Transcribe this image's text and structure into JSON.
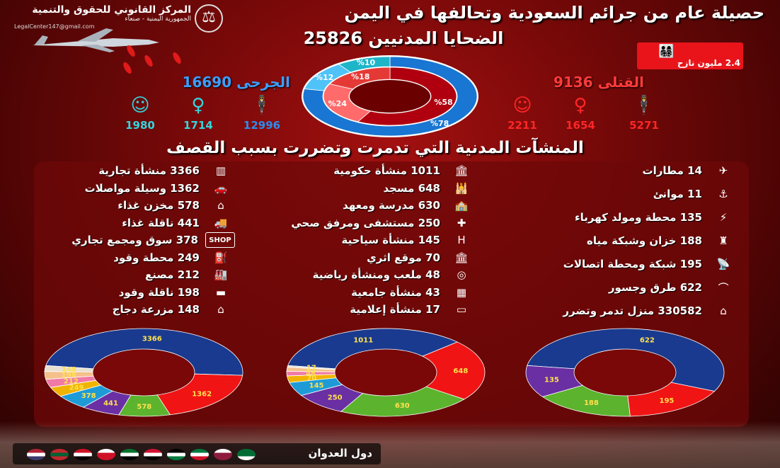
{
  "header": {
    "title": "حصيلة عام من جرائم السعودية وتحالفها في اليمن",
    "civilian_victims_label": "الضحايا المدنيين 25826"
  },
  "org": {
    "name": "المركز القانوني للحقوق والتنمية",
    "sub": "الجمهورية اليمنية - صنعاء",
    "email": "LegalCenter147@gmail.com"
  },
  "displaced": {
    "label": "2.4 مليون نازح",
    "color": "#e8141a"
  },
  "killed": {
    "label": "القتلى 9136",
    "men": "5271",
    "women": "1654",
    "children": "2211",
    "color": "#ff2626"
  },
  "injured": {
    "label": "الجرحى 16690",
    "men": "12996",
    "women": "1714",
    "children": "1980",
    "color": "#2b8df0"
  },
  "victims_donut": {
    "outer": [
      {
        "label": "%78",
        "value": 78,
        "color": "#1976d2"
      },
      {
        "label": "%12",
        "value": 12,
        "color": "#4fc3f7"
      },
      {
        "label": "%10",
        "value": 10,
        "color": "#1fb5c9"
      }
    ],
    "inner": [
      {
        "label": "%58",
        "value": 58,
        "color": "#b0000f"
      },
      {
        "label": "%24",
        "value": 24,
        "color": "#ff6b6b"
      },
      {
        "label": "%18",
        "value": 18,
        "color": "#e53935"
      }
    ]
  },
  "facilities_title": "المنشآت المدنية التي تدمرت وتضررت بسبب القصف",
  "columns": {
    "right": [
      {
        "text": "14 مطارات",
        "icon": "airport-icon",
        "glyph": "✈"
      },
      {
        "text": "11 موانئ",
        "icon": "anchor-icon",
        "glyph": "⚓"
      },
      {
        "text": "135 محطة ومولد كهرباء",
        "icon": "power-tower-icon",
        "glyph": "⚡"
      },
      {
        "text": "188 خزان وشبكة مياه",
        "icon": "water-tower-icon",
        "glyph": "♜"
      },
      {
        "text": "195 شبكة ومحطة اتصالات",
        "icon": "antenna-icon",
        "glyph": "📡"
      },
      {
        "text": "622 طرق وجسور",
        "icon": "bridge-icon",
        "glyph": "⌒"
      },
      {
        "text": "330582 منزل تدمر وتضرر",
        "icon": "houses-icon",
        "glyph": "⌂"
      }
    ],
    "middle": [
      {
        "text": "1011 منشأة حكومية",
        "icon": "government-building-icon",
        "glyph": "🏛"
      },
      {
        "text": "648 مسجد",
        "icon": "mosque-icon",
        "glyph": "🕌"
      },
      {
        "text": "630 مدرسة ومعهد",
        "icon": "school-icon",
        "glyph": "🏫"
      },
      {
        "text": "250 مستشفى ومرفق صحي",
        "icon": "hospital-icon",
        "glyph": "✚"
      },
      {
        "text": "145 منشأة سياحية",
        "icon": "hotel-icon",
        "glyph": "H"
      },
      {
        "text": "70 موقع اثري",
        "icon": "museum-icon",
        "glyph": "🏛"
      },
      {
        "text": "48 ملعب ومنشأة رياضية",
        "icon": "stadium-icon",
        "glyph": "◎"
      },
      {
        "text": "43 منشأة جامعية",
        "icon": "university-icon",
        "glyph": "▦"
      },
      {
        "text": "17 منشأة إعلامية",
        "icon": "tv-icon",
        "glyph": "▭"
      }
    ],
    "left": [
      {
        "text": "3366 منشأة تجارية",
        "icon": "store-icon",
        "glyph": "▥"
      },
      {
        "text": "1362 وسيلة مواصلات",
        "icon": "car-icon",
        "glyph": "🚗"
      },
      {
        "text": "578 مخزن غذاء",
        "icon": "warehouse-icon",
        "glyph": "⌂"
      },
      {
        "text": "441 ناقلة غذاء",
        "icon": "truck-icon",
        "glyph": "🚚"
      },
      {
        "text": "378 سوق ومجمع تجاري",
        "icon": "shop-icon",
        "glyph": "SHOP"
      },
      {
        "text": "249 محطة وقود",
        "icon": "fuel-station-icon",
        "glyph": "⛽"
      },
      {
        "text": "212 مصنع",
        "icon": "factory-icon",
        "glyph": "🏭"
      },
      {
        "text": "198 ناقلة وقود",
        "icon": "tanker-icon",
        "glyph": "▬"
      },
      {
        "text": "148 مزرعة دجاج",
        "icon": "poultry-farm-icon",
        "glyph": "⌂"
      }
    ]
  },
  "chart_data": [
    {
      "type": "pie",
      "name": "left",
      "values": [
        3366,
        1362,
        578,
        441,
        378,
        249,
        212,
        198,
        148
      ],
      "labels": [
        "3366",
        "1362",
        "578",
        "441",
        "378",
        "249",
        "212",
        "198",
        "148"
      ],
      "colors": [
        "#1a3a8f",
        "#f01414",
        "#5cb32e",
        "#6a2fa3",
        "#1e9bd7",
        "#f0b400",
        "#f07aa5",
        "#f5c08a",
        "#e8e0d0"
      ]
    },
    {
      "type": "pie",
      "name": "middle",
      "values": [
        1011,
        648,
        630,
        250,
        145,
        70,
        48,
        43,
        17
      ],
      "labels": [
        "1011",
        "648",
        "630",
        "250",
        "145",
        "70",
        "48",
        "43",
        "17"
      ],
      "colors": [
        "#1a3a8f",
        "#f01414",
        "#5cb32e",
        "#6a2fa3",
        "#1e9bd7",
        "#f0b400",
        "#f07aa5",
        "#f5c08a",
        "#e8e0d0"
      ]
    },
    {
      "type": "pie",
      "name": "right",
      "values": [
        622,
        195,
        188,
        135
      ],
      "labels": [
        "622",
        "195",
        "188",
        "135"
      ],
      "colors": [
        "#1a3a8f",
        "#f01414",
        "#5cb32e",
        "#6a2fa3"
      ]
    }
  ],
  "footer": {
    "label": "دول العدوان",
    "flags": [
      {
        "name": "usa-flag",
        "colors": [
          "#b22234",
          "#ffffff",
          "#3c3b6e"
        ]
      },
      {
        "name": "morocco-flag",
        "colors": [
          "#c1272d",
          "#006233",
          "#c1272d"
        ]
      },
      {
        "name": "egypt-flag",
        "colors": [
          "#ce1126",
          "#ffffff",
          "#000000"
        ]
      },
      {
        "name": "bahrain-flag",
        "colors": [
          "#ffffff",
          "#ce1126",
          "#ce1126"
        ]
      },
      {
        "name": "uae-flag",
        "colors": [
          "#00732f",
          "#ffffff",
          "#000000"
        ]
      },
      {
        "name": "sudan-flag",
        "colors": [
          "#d21034",
          "#ffffff",
          "#000000"
        ]
      },
      {
        "name": "jordan-flag",
        "colors": [
          "#000000",
          "#ffffff",
          "#007a3d"
        ]
      },
      {
        "name": "kuwait-flag",
        "colors": [
          "#007a3d",
          "#ffffff",
          "#ce1126"
        ]
      },
      {
        "name": "qatar-flag",
        "colors": [
          "#ffffff",
          "#8d1b3d",
          "#8d1b3d"
        ]
      },
      {
        "name": "saudi-flag",
        "colors": [
          "#006c35",
          "#006c35",
          "#ffffff"
        ]
      }
    ]
  }
}
